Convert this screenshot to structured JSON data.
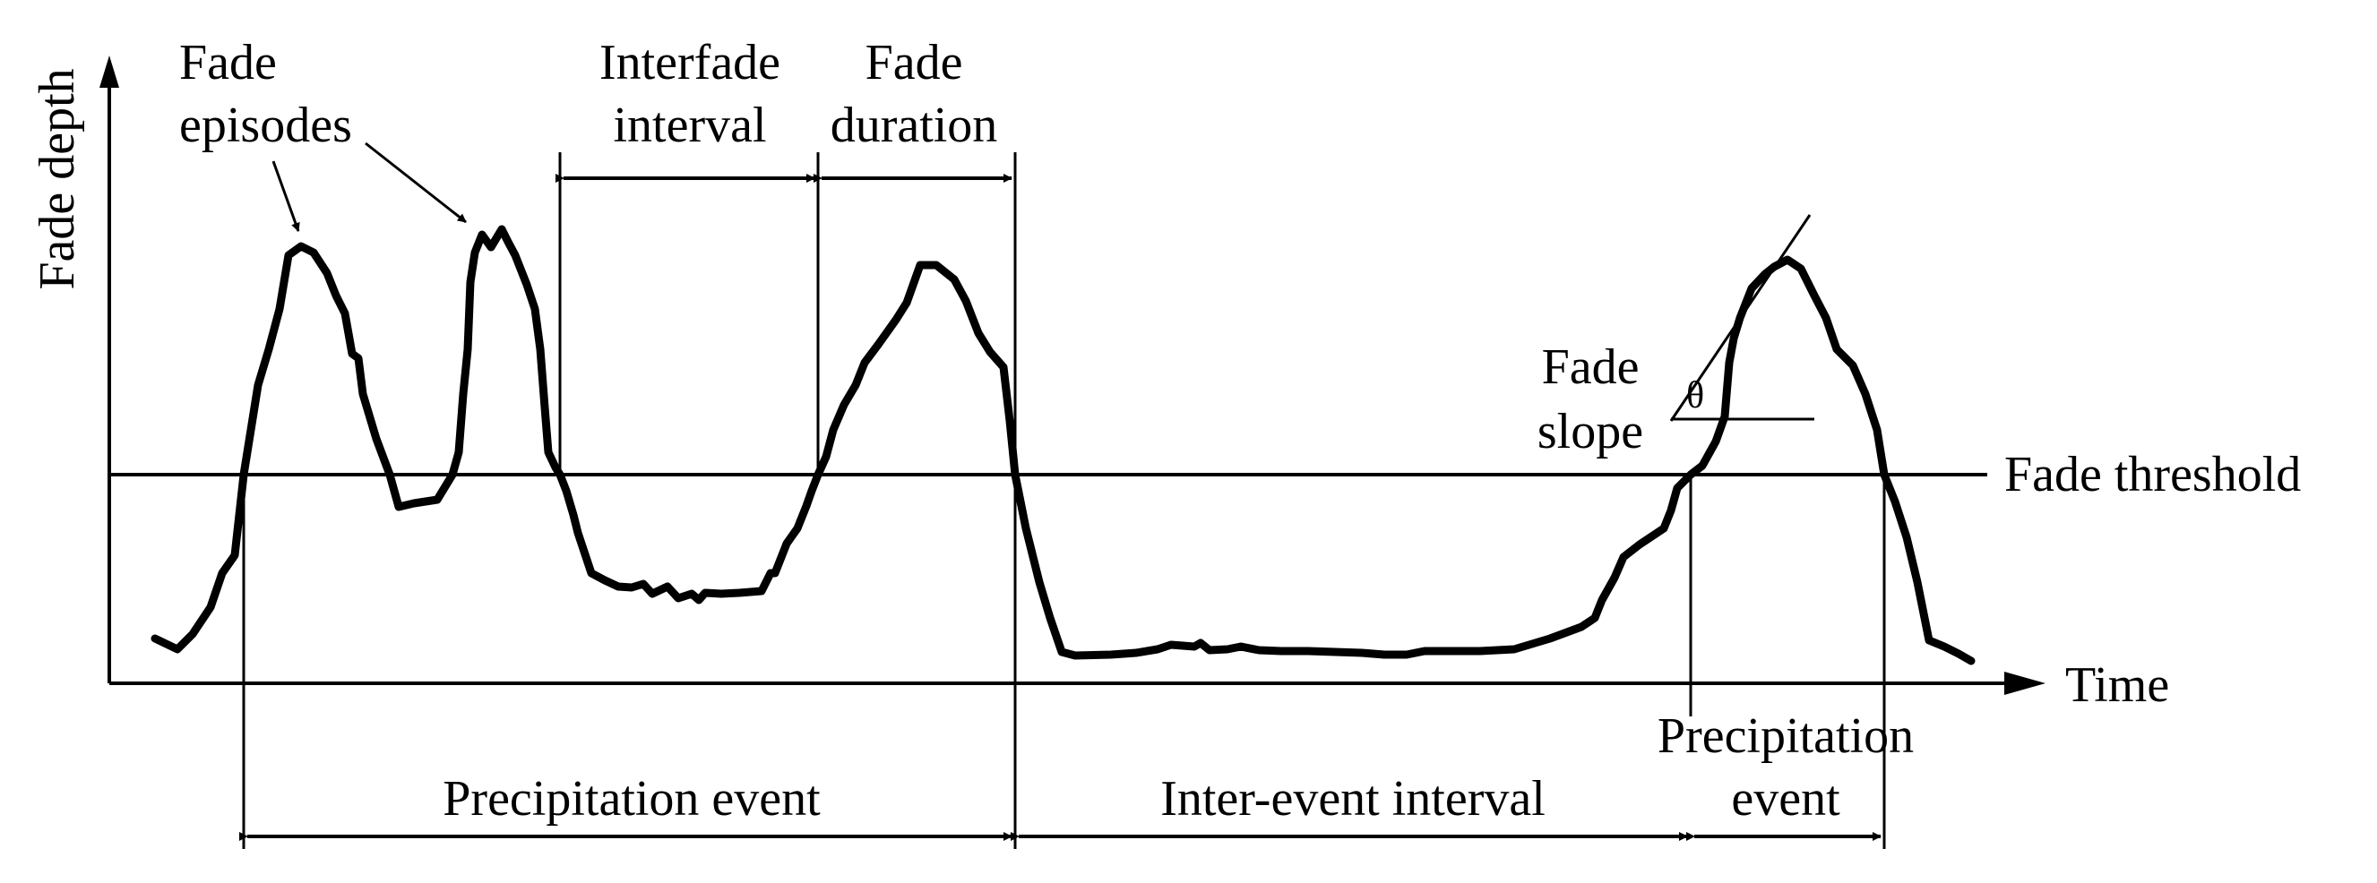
{
  "labels": {
    "y_axis": "Fade depth",
    "x_axis": "Time",
    "fade_episodes_line1": "Fade",
    "fade_episodes_line2": "episodes",
    "interfade_line1": "Interfade",
    "interfade_line2": "interval",
    "fade_duration_line1": "Fade",
    "fade_duration_line2": "duration",
    "fade_threshold": "Fade threshold",
    "fade_slope_line1": "Fade",
    "fade_slope_line2": "slope",
    "theta": "θ",
    "precip_event": "Precipitation event",
    "inter_event": "Inter-event interval",
    "precip_event2_line1": "Precipitation",
    "precip_event2_line2": "event"
  },
  "colors": {
    "ink": "#000000",
    "background": "#ffffff"
  }
}
